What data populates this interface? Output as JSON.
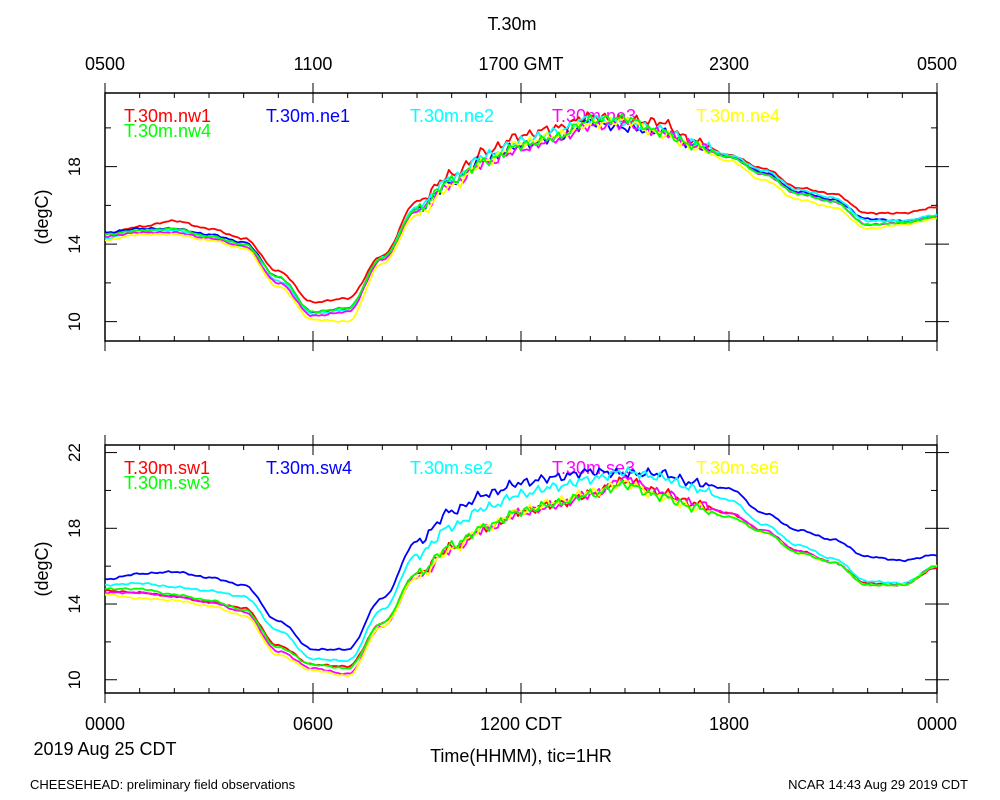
{
  "figure": {
    "title": "T.30m",
    "gmt_ticks": [
      "0500",
      "1100",
      "1700 GMT",
      "2300",
      "0500"
    ],
    "cdt_ticks": [
      "0000",
      "0600",
      "1200 CDT",
      "1800",
      "0000"
    ],
    "date_label": "2019 Aug 25 CDT",
    "xlabel": "Time(HHMM), tic=1HR",
    "footer_left": "CHEESEHEAD: preliminary field observations",
    "footer_right": "NCAR 14:43 Aug 29 2019 CDT"
  },
  "chart_data": [
    {
      "type": "line",
      "ylabel": "(degC)",
      "ylim": [
        9,
        21.8
      ],
      "yticks": [
        10,
        14,
        18
      ],
      "x_hours": [
        0,
        1,
        2,
        3,
        4,
        5,
        6,
        7,
        8,
        9,
        10,
        11,
        12,
        13,
        14,
        15,
        16,
        17,
        18,
        19,
        20,
        21,
        22,
        23,
        24
      ],
      "series": [
        {
          "name": "T.30m.nw1",
          "color": "#ff0000",
          "values": [
            14.5,
            14.9,
            15.2,
            14.8,
            14.3,
            12.6,
            11.0,
            11.2,
            13.4,
            16.2,
            17.6,
            18.8,
            19.6,
            20.0,
            20.6,
            20.4,
            20.3,
            19.3,
            18.6,
            17.9,
            16.9,
            16.6,
            15.6,
            15.6,
            15.9
          ]
        },
        {
          "name": "T.30m.ne1",
          "color": "#0000ff",
          "values": [
            14.6,
            14.8,
            14.8,
            14.5,
            14.1,
            12.3,
            10.5,
            10.7,
            13.3,
            15.8,
            17.2,
            18.4,
            19.1,
            19.5,
            20.3,
            20.0,
            19.8,
            19.1,
            18.5,
            17.7,
            16.7,
            16.3,
            15.3,
            15.2,
            15.4
          ]
        },
        {
          "name": "T.30m.ne2",
          "color": "#00ffff",
          "values": [
            14.3,
            14.7,
            14.7,
            14.4,
            13.9,
            12.1,
            10.4,
            10.6,
            13.3,
            15.9,
            17.4,
            18.6,
            19.3,
            19.8,
            20.5,
            20.3,
            19.9,
            19.2,
            18.6,
            17.8,
            16.8,
            16.4,
            15.2,
            15.2,
            15.5
          ]
        },
        {
          "name": "T.30m.ne3",
          "color": "#ff00ff",
          "values": [
            14.4,
            14.6,
            14.6,
            14.3,
            13.9,
            12.0,
            10.3,
            10.5,
            13.2,
            15.7,
            17.1,
            18.2,
            18.9,
            19.4,
            20.1,
            20.2,
            19.8,
            19.1,
            18.5,
            17.6,
            16.6,
            16.2,
            15.0,
            15.1,
            15.4
          ]
        },
        {
          "name": "T.30m.ne4",
          "color": "#ffff00",
          "values": [
            14.2,
            14.5,
            14.5,
            14.2,
            13.8,
            11.8,
            10.1,
            10.0,
            13.0,
            15.5,
            17.0,
            18.3,
            19.2,
            19.6,
            20.2,
            20.4,
            19.7,
            19.0,
            18.3,
            17.3,
            16.3,
            15.9,
            14.8,
            15.0,
            15.3
          ]
        },
        {
          "name": "T.30m.nw4",
          "color": "#00ff00",
          "values": [
            14.5,
            14.7,
            14.8,
            14.4,
            14.0,
            12.3,
            10.5,
            10.7,
            13.3,
            15.8,
            17.3,
            18.3,
            19.1,
            19.5,
            20.4,
            20.5,
            19.8,
            19.1,
            18.5,
            17.6,
            16.6,
            16.2,
            15.0,
            15.1,
            15.4
          ]
        }
      ]
    },
    {
      "type": "line",
      "ylabel": "(degC)",
      "ylim": [
        9.3,
        22.4
      ],
      "yticks": [
        10,
        14,
        18,
        22
      ],
      "x_hours": [
        0,
        1,
        2,
        3,
        4,
        5,
        6,
        7,
        8,
        9,
        10,
        11,
        12,
        13,
        14,
        15,
        16,
        17,
        18,
        19,
        20,
        21,
        22,
        23,
        24
      ],
      "series": [
        {
          "name": "T.30m.sw1",
          "color": "#ff0000",
          "values": [
            14.7,
            14.6,
            14.4,
            14.1,
            13.8,
            11.8,
            10.8,
            10.7,
            13.0,
            15.6,
            17.0,
            18.0,
            18.9,
            19.3,
            19.8,
            20.5,
            19.9,
            19.3,
            18.8,
            17.8,
            16.8,
            16.2,
            15.1,
            15.0,
            15.9
          ]
        },
        {
          "name": "T.30m.sw4",
          "color": "#0000ff",
          "values": [
            15.3,
            15.6,
            15.7,
            15.4,
            15.0,
            13.1,
            11.6,
            11.6,
            14.3,
            17.3,
            18.9,
            19.8,
            20.4,
            20.7,
            21.0,
            20.9,
            20.9,
            20.4,
            20.1,
            18.8,
            17.9,
            17.4,
            16.5,
            16.3,
            16.6
          ]
        },
        {
          "name": "T.30m.se2",
          "color": "#00ffff",
          "values": [
            15.0,
            15.1,
            14.9,
            14.7,
            14.4,
            12.6,
            11.1,
            11.0,
            13.7,
            16.6,
            18.1,
            19.1,
            19.8,
            20.2,
            20.6,
            21.0,
            20.7,
            20.1,
            19.5,
            18.2,
            17.1,
            16.4,
            15.2,
            15.1,
            16.0
          ]
        },
        {
          "name": "T.30m.se3",
          "color": "#ff00ff",
          "values": [
            14.6,
            14.6,
            14.4,
            14.1,
            13.6,
            11.5,
            10.6,
            10.3,
            12.8,
            15.4,
            16.9,
            18.0,
            18.8,
            19.2,
            19.8,
            20.6,
            19.9,
            19.3,
            18.8,
            17.9,
            16.8,
            16.2,
            15.0,
            15.0,
            16.0
          ]
        },
        {
          "name": "T.30m.se6",
          "color": "#ffff00",
          "values": [
            14.5,
            14.3,
            14.2,
            13.9,
            13.4,
            11.3,
            10.5,
            10.2,
            12.8,
            15.4,
            16.9,
            18.1,
            18.9,
            19.4,
            19.9,
            20.4,
            19.7,
            19.1,
            18.6,
            17.8,
            16.7,
            16.2,
            15.0,
            15.0,
            16.0
          ]
        },
        {
          "name": "T.30m.sw3",
          "color": "#00ff00",
          "values": [
            14.8,
            14.8,
            14.5,
            14.2,
            13.7,
            11.7,
            10.8,
            10.6,
            13.0,
            15.6,
            17.1,
            18.1,
            18.9,
            19.3,
            19.8,
            20.3,
            19.7,
            19.1,
            18.6,
            17.8,
            16.7,
            16.2,
            15.0,
            15.0,
            16.0
          ]
        }
      ]
    }
  ]
}
